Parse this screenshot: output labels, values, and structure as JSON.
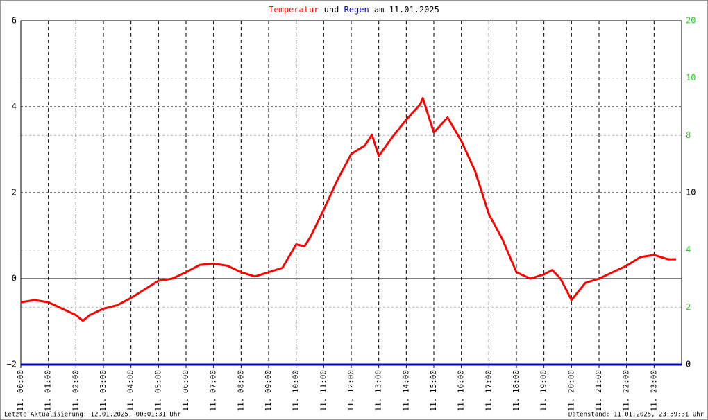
{
  "chart_data": {
    "type": "line",
    "title_connector": "und",
    "title_date": "am 11.01.2025",
    "xlim": [
      0,
      24
    ],
    "xticks": [
      {
        "value": 0,
        "label": "11. 00:00"
      },
      {
        "value": 1,
        "label": "11. 01:00"
      },
      {
        "value": 2,
        "label": "11. 02:00"
      },
      {
        "value": 3,
        "label": "11. 03:00"
      },
      {
        "value": 4,
        "label": "11. 04:00"
      },
      {
        "value": 5,
        "label": "11. 05:00"
      },
      {
        "value": 6,
        "label": "11. 06:00"
      },
      {
        "value": 7,
        "label": "11. 07:00"
      },
      {
        "value": 8,
        "label": "11. 08:00"
      },
      {
        "value": 9,
        "label": "11. 09:00"
      },
      {
        "value": 10,
        "label": "11. 10:00"
      },
      {
        "value": 11,
        "label": "11. 11:00"
      },
      {
        "value": 12,
        "label": "11. 12:00"
      },
      {
        "value": 13,
        "label": "11. 13:00"
      },
      {
        "value": 14,
        "label": "11. 14:00"
      },
      {
        "value": 15,
        "label": "11. 15:00"
      },
      {
        "value": 16,
        "label": "11. 16:00"
      },
      {
        "value": 17,
        "label": "11. 17:00"
      },
      {
        "value": 18,
        "label": "11. 18:00"
      },
      {
        "value": 19,
        "label": "11. 19:00"
      },
      {
        "value": 20,
        "label": "11. 20:00"
      },
      {
        "value": 21,
        "label": "11. 21:00"
      },
      {
        "value": 22,
        "label": "11. 22:00"
      },
      {
        "value": 23,
        "label": "11. 23:00"
      }
    ],
    "ylim": [
      -2,
      6
    ],
    "yticks": [
      {
        "value": -2,
        "label": "−2"
      },
      0,
      2,
      4,
      6
    ],
    "y2lim": [
      0,
      20
    ],
    "right_axis_labels": [
      "0",
      "2",
      "4",
      "10",
      "8",
      "10",
      "20"
    ],
    "grid": true,
    "series": [
      {
        "name": "Temperatur",
        "color": "#ff0000",
        "x": [
          0,
          0.5,
          1,
          1.5,
          2,
          2.25,
          2.5,
          3,
          3.5,
          4,
          4.5,
          5,
          5.5,
          6,
          6.5,
          7,
          7.5,
          8,
          8.5,
          9,
          9.5,
          10,
          10.3,
          10.5,
          11,
          11.5,
          12,
          12.5,
          12.75,
          13,
          13.5,
          14,
          14.5,
          14.6,
          15,
          15.5,
          16,
          16.5,
          17,
          17.5,
          18,
          18.5,
          19,
          19.3,
          19.6,
          20,
          20.5,
          21,
          21.5,
          22,
          22.5,
          23,
          23.5,
          23.8
        ],
        "values": [
          -0.55,
          -0.5,
          -0.55,
          -0.7,
          -0.85,
          -0.98,
          -0.85,
          -0.7,
          -0.62,
          -0.45,
          -0.25,
          -0.05,
          0.0,
          0.15,
          0.32,
          0.35,
          0.3,
          0.15,
          0.05,
          0.15,
          0.25,
          0.8,
          0.75,
          0.95,
          1.6,
          2.3,
          2.9,
          3.1,
          3.35,
          2.85,
          3.3,
          3.7,
          4.05,
          4.2,
          3.4,
          3.75,
          3.2,
          2.5,
          1.5,
          0.9,
          0.15,
          0.0,
          0.1,
          0.2,
          0.0,
          -0.5,
          -0.1,
          0.0,
          0.15,
          0.3,
          0.5,
          0.55,
          0.45,
          0.45
        ]
      },
      {
        "name": "Regen",
        "color": "#0000cc",
        "axis": "y2",
        "x": [
          0,
          24
        ],
        "values": [
          0,
          0
        ]
      }
    ],
    "footer_left": "Letzte Aktualisierung: 12.01.2025, 00:01:31 Uhr",
    "footer_right": "Datenstand: 11.01.2025, 23:59:31 Uhr"
  }
}
